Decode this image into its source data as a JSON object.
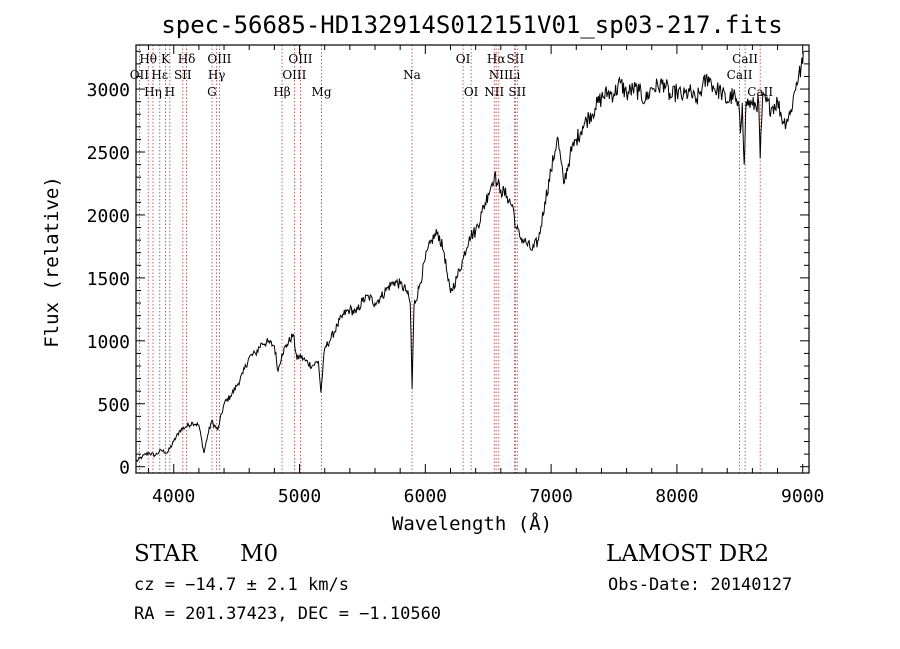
{
  "chart_data": {
    "type": "line",
    "title": "spec-56685-HD132914S012151V01_sp03-217.fits",
    "xlabel": "Wavelength (Å)",
    "ylabel": "Flux (relative)",
    "xlim": [
      3700,
      9050
    ],
    "ylim": [
      -50,
      3350
    ],
    "xticks": [
      4000,
      5000,
      6000,
      7000,
      8000,
      9000
    ],
    "yticks": [
      0,
      500,
      1000,
      1500,
      2000,
      2500,
      3000
    ],
    "grid": false,
    "spectrum_points": [
      [
        3700,
        40
      ],
      [
        3750,
        80
      ],
      [
        3800,
        110
      ],
      [
        3850,
        90
      ],
      [
        3900,
        130
      ],
      [
        3950,
        110
      ],
      [
        4000,
        200
      ],
      [
        4050,
        290
      ],
      [
        4100,
        320
      ],
      [
        4150,
        350
      ],
      [
        4200,
        330
      ],
      [
        4240,
        110
      ],
      [
        4270,
        250
      ],
      [
        4300,
        360
      ],
      [
        4350,
        290
      ],
      [
        4400,
        500
      ],
      [
        4450,
        560
      ],
      [
        4500,
        640
      ],
      [
        4550,
        740
      ],
      [
        4600,
        870
      ],
      [
        4650,
        900
      ],
      [
        4700,
        980
      ],
      [
        4750,
        990
      ],
      [
        4800,
        960
      ],
      [
        4830,
        760
      ],
      [
        4860,
        900
      ],
      [
        4900,
        970
      ],
      [
        4950,
        1050
      ],
      [
        4980,
        850
      ],
      [
        5000,
        880
      ],
      [
        5050,
        840
      ],
      [
        5100,
        800
      ],
      [
        5150,
        840
      ],
      [
        5170,
        590
      ],
      [
        5200,
        940
      ],
      [
        5250,
        1020
      ],
      [
        5300,
        1120
      ],
      [
        5350,
        1210
      ],
      [
        5400,
        1250
      ],
      [
        5450,
        1220
      ],
      [
        5500,
        1320
      ],
      [
        5550,
        1350
      ],
      [
        5600,
        1300
      ],
      [
        5650,
        1350
      ],
      [
        5700,
        1420
      ],
      [
        5750,
        1470
      ],
      [
        5800,
        1450
      ],
      [
        5850,
        1400
      ],
      [
        5880,
        1300
      ],
      [
        5895,
        620
      ],
      [
        5910,
        1280
      ],
      [
        5950,
        1420
      ],
      [
        6000,
        1650
      ],
      [
        6050,
        1800
      ],
      [
        6100,
        1860
      ],
      [
        6150,
        1700
      ],
      [
        6180,
        1480
      ],
      [
        6200,
        1380
      ],
      [
        6250,
        1500
      ],
      [
        6300,
        1650
      ],
      [
        6350,
        1830
      ],
      [
        6400,
        1870
      ],
      [
        6450,
        2020
      ],
      [
        6500,
        2170
      ],
      [
        6550,
        2320
      ],
      [
        6570,
        2250
      ],
      [
        6600,
        2200
      ],
      [
        6650,
        2150
      ],
      [
        6700,
        2050
      ],
      [
        6720,
        1900
      ],
      [
        6750,
        1830
      ],
      [
        6800,
        1780
      ],
      [
        6850,
        1720
      ],
      [
        6900,
        1800
      ],
      [
        6950,
        2100
      ],
      [
        7000,
        2350
      ],
      [
        7050,
        2620
      ],
      [
        7100,
        2250
      ],
      [
        7150,
        2470
      ],
      [
        7200,
        2600
      ],
      [
        7250,
        2700
      ],
      [
        7300,
        2780
      ],
      [
        7350,
        2850
      ],
      [
        7400,
        2930
      ],
      [
        7450,
        2970
      ],
      [
        7500,
        2960
      ],
      [
        7550,
        3050
      ],
      [
        7600,
        2960
      ],
      [
        7650,
        3000
      ],
      [
        7700,
        2980
      ],
      [
        7750,
        2910
      ],
      [
        7800,
        3010
      ],
      [
        7850,
        3020
      ],
      [
        7900,
        3050
      ],
      [
        7950,
        2930
      ],
      [
        8000,
        2980
      ],
      [
        8050,
        2940
      ],
      [
        8100,
        2980
      ],
      [
        8150,
        2900
      ],
      [
        8200,
        3010
      ],
      [
        8250,
        3100
      ],
      [
        8300,
        3000
      ],
      [
        8350,
        2980
      ],
      [
        8400,
        2900
      ],
      [
        8450,
        2960
      ],
      [
        8498,
        2800
      ],
      [
        8505,
        2650
      ],
      [
        8520,
        2890
      ],
      [
        8535,
        2400
      ],
      [
        8550,
        2900
      ],
      [
        8600,
        2870
      ],
      [
        8650,
        2890
      ],
      [
        8662,
        2450
      ],
      [
        8680,
        2920
      ],
      [
        8750,
        2850
      ],
      [
        8800,
        2900
      ],
      [
        8850,
        2730
      ],
      [
        8900,
        2800
      ],
      [
        8950,
        3050
      ],
      [
        9000,
        3200
      ]
    ],
    "line_marks": [
      {
        "label": "Hθ",
        "x": 3797,
        "row": 1
      },
      {
        "label": "OII",
        "x": 3727,
        "row": 2
      },
      {
        "label": "Hη",
        "x": 3835,
        "row": 3
      },
      {
        "label": "Hε",
        "x": 3889,
        "row": 2
      },
      {
        "label": "K",
        "x": 3934,
        "row": 1
      },
      {
        "label": "H",
        "x": 3969,
        "row": 3
      },
      {
        "label": "SII",
        "x": 4072,
        "row": 2
      },
      {
        "label": "Hδ",
        "x": 4102,
        "row": 1
      },
      {
        "label": "G",
        "x": 4304,
        "row": 3
      },
      {
        "label": "Hγ",
        "x": 4341,
        "row": 2
      },
      {
        "label": "OIII",
        "x": 4363,
        "row": 1
      },
      {
        "label": "Hβ",
        "x": 4861,
        "row": 3
      },
      {
        "label": "OIII",
        "x": 4959,
        "row": 2
      },
      {
        "label": "OIII",
        "x": 5007,
        "row": 1
      },
      {
        "label": "Mg",
        "x": 5175,
        "row": 3
      },
      {
        "label": "Na",
        "x": 5894,
        "row": 2
      },
      {
        "label": "OI",
        "x": 6300,
        "row": 1
      },
      {
        "label": "OI",
        "x": 6364,
        "row": 3
      },
      {
        "label": "NII",
        "x": 6548,
        "row": 3
      },
      {
        "label": "Hα",
        "x": 6563,
        "row": 1
      },
      {
        "label": "NII",
        "x": 6584,
        "row": 2
      },
      {
        "label": "Li",
        "x": 6708,
        "row": 2
      },
      {
        "label": "SII",
        "x": 6716,
        "row": 1
      },
      {
        "label": "SII",
        "x": 6731,
        "row": 3
      },
      {
        "label": "CaII",
        "x": 8498,
        "row": 2
      },
      {
        "label": "CaII",
        "x": 8542,
        "row": 1
      },
      {
        "label": "CaII",
        "x": 8662,
        "row": 3
      }
    ]
  },
  "info": {
    "object_class": "STAR",
    "subclass": "M0",
    "survey": "LAMOST DR2",
    "redshift_line": "cz = −14.7 ± 2.1 km/s",
    "obs_date_line": "Obs-Date: 20140127",
    "coords_line": "RA = 201.37423, DEC =  −1.10560"
  },
  "colors": {
    "spectrum": "#000000",
    "line_marks": "#b03a3a"
  }
}
